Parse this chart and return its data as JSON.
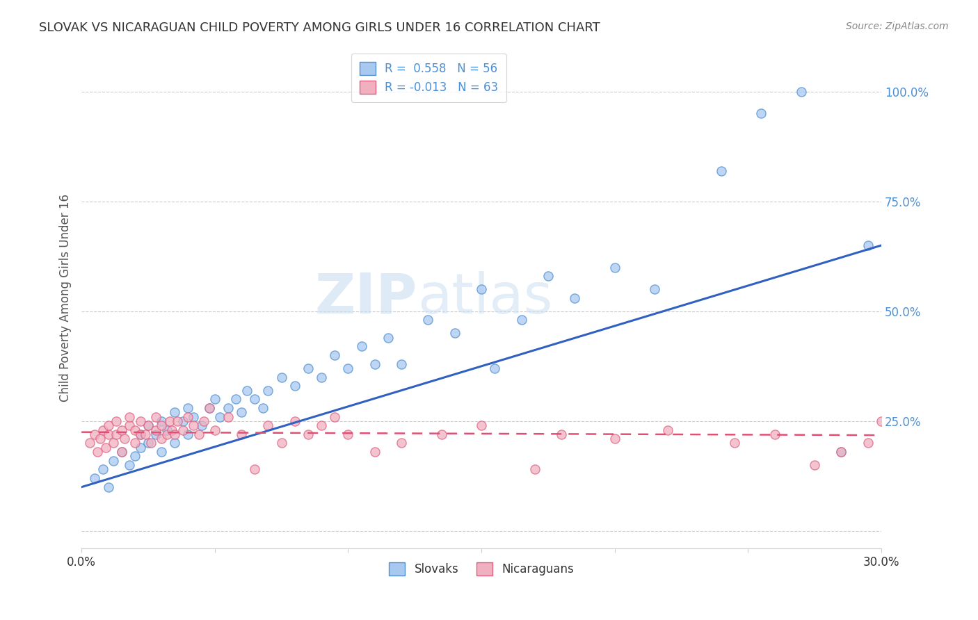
{
  "title": "SLOVAK VS NICARAGUAN CHILD POVERTY AMONG GIRLS UNDER 16 CORRELATION CHART",
  "source": "Source: ZipAtlas.com",
  "ylabel": "Child Poverty Among Girls Under 16",
  "xlim": [
    0.0,
    0.3
  ],
  "ylim": [
    -0.04,
    1.1
  ],
  "xticks": [
    0.0,
    0.05,
    0.1,
    0.15,
    0.2,
    0.25,
    0.3
  ],
  "xticklabels": [
    "0.0%",
    "",
    "",
    "",
    "",
    "",
    "30.0%"
  ],
  "yticks_right": [
    0.0,
    0.25,
    0.5,
    0.75,
    1.0
  ],
  "ytick_labels_right": [
    "",
    "25.0%",
    "50.0%",
    "75.0%",
    "100.0%"
  ],
  "blue_color": "#a8c8f0",
  "pink_color": "#f0b0c0",
  "blue_edge_color": "#5090d0",
  "pink_edge_color": "#e06080",
  "blue_line_color": "#3060c0",
  "pink_line_color": "#e05075",
  "legend_label_blue": "R =  0.558   N = 56",
  "legend_label_pink": "R = -0.013   N = 63",
  "blue_scatter_x": [
    0.005,
    0.008,
    0.01,
    0.012,
    0.015,
    0.018,
    0.02,
    0.022,
    0.022,
    0.025,
    0.025,
    0.028,
    0.03,
    0.03,
    0.032,
    0.035,
    0.035,
    0.038,
    0.04,
    0.04,
    0.042,
    0.045,
    0.048,
    0.05,
    0.052,
    0.055,
    0.058,
    0.06,
    0.062,
    0.065,
    0.068,
    0.07,
    0.075,
    0.08,
    0.085,
    0.09,
    0.095,
    0.1,
    0.105,
    0.11,
    0.115,
    0.12,
    0.13,
    0.14,
    0.15,
    0.155,
    0.165,
    0.175,
    0.185,
    0.2,
    0.215,
    0.24,
    0.255,
    0.27,
    0.285,
    0.295
  ],
  "blue_scatter_y": [
    0.12,
    0.14,
    0.1,
    0.16,
    0.18,
    0.15,
    0.17,
    0.19,
    0.22,
    0.2,
    0.24,
    0.22,
    0.18,
    0.25,
    0.23,
    0.2,
    0.27,
    0.25,
    0.22,
    0.28,
    0.26,
    0.24,
    0.28,
    0.3,
    0.26,
    0.28,
    0.3,
    0.27,
    0.32,
    0.3,
    0.28,
    0.32,
    0.35,
    0.33,
    0.37,
    0.35,
    0.4,
    0.37,
    0.42,
    0.38,
    0.44,
    0.38,
    0.48,
    0.45,
    0.55,
    0.37,
    0.48,
    0.58,
    0.53,
    0.6,
    0.55,
    0.82,
    0.95,
    1.0,
    0.18,
    0.65
  ],
  "pink_scatter_x": [
    0.003,
    0.005,
    0.006,
    0.007,
    0.008,
    0.009,
    0.01,
    0.01,
    0.012,
    0.013,
    0.013,
    0.015,
    0.015,
    0.016,
    0.018,
    0.018,
    0.02,
    0.02,
    0.022,
    0.022,
    0.024,
    0.025,
    0.026,
    0.028,
    0.028,
    0.03,
    0.03,
    0.032,
    0.033,
    0.034,
    0.035,
    0.036,
    0.038,
    0.04,
    0.042,
    0.044,
    0.046,
    0.048,
    0.05,
    0.055,
    0.06,
    0.065,
    0.07,
    0.075,
    0.08,
    0.085,
    0.09,
    0.095,
    0.1,
    0.11,
    0.12,
    0.135,
    0.15,
    0.17,
    0.18,
    0.2,
    0.22,
    0.245,
    0.26,
    0.275,
    0.285,
    0.295,
    0.3
  ],
  "pink_scatter_y": [
    0.2,
    0.22,
    0.18,
    0.21,
    0.23,
    0.19,
    0.22,
    0.24,
    0.2,
    0.22,
    0.25,
    0.18,
    0.23,
    0.21,
    0.24,
    0.26,
    0.2,
    0.23,
    0.22,
    0.25,
    0.22,
    0.24,
    0.2,
    0.23,
    0.26,
    0.21,
    0.24,
    0.22,
    0.25,
    0.23,
    0.22,
    0.25,
    0.23,
    0.26,
    0.24,
    0.22,
    0.25,
    0.28,
    0.23,
    0.26,
    0.22,
    0.14,
    0.24,
    0.2,
    0.25,
    0.22,
    0.24,
    0.26,
    0.22,
    0.18,
    0.2,
    0.22,
    0.24,
    0.14,
    0.22,
    0.21,
    0.23,
    0.2,
    0.22,
    0.15,
    0.18,
    0.2,
    0.25
  ],
  "blue_trend_x": [
    0.0,
    0.3
  ],
  "blue_trend_y": [
    0.1,
    0.65
  ],
  "pink_trend_x": [
    0.0,
    0.3
  ],
  "pink_trend_y": [
    0.225,
    0.218
  ],
  "watermark_zip": "ZIP",
  "watermark_atlas": "atlas",
  "background_color": "#ffffff",
  "grid_color": "#cccccc",
  "title_color": "#333333",
  "axis_label_color": "#555555",
  "right_axis_color": "#4a90d9",
  "scatter_size": 90
}
